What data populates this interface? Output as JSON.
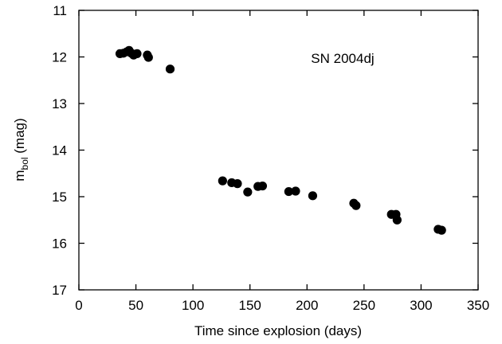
{
  "chart_data": {
    "type": "scatter",
    "title": "",
    "xlabel": "Time since explosion (days)",
    "ylabel_main": "m",
    "ylabel_sub": "bol",
    "ylabel_unit": " (mag)",
    "annotation": "SN 2004dj",
    "xlim": [
      0,
      350
    ],
    "ylim": [
      11,
      17
    ],
    "y_inverted": true,
    "x_ticks": [
      "0",
      "50",
      "100",
      "150",
      "200",
      "250",
      "300",
      "350"
    ],
    "y_ticks": [
      "11",
      "12",
      "13",
      "14",
      "15",
      "16",
      "17"
    ],
    "grid": false,
    "marker_color": "#000000",
    "points": [
      {
        "x": 36,
        "y": 11.93
      },
      {
        "x": 39,
        "y": 11.92
      },
      {
        "x": 42,
        "y": 11.89
      },
      {
        "x": 44,
        "y": 11.86
      },
      {
        "x": 46,
        "y": 11.92
      },
      {
        "x": 48,
        "y": 11.96
      },
      {
        "x": 51,
        "y": 11.93
      },
      {
        "x": 60,
        "y": 11.96
      },
      {
        "x": 61,
        "y": 12.01
      },
      {
        "x": 80,
        "y": 12.26
      },
      {
        "x": 126,
        "y": 14.66
      },
      {
        "x": 134,
        "y": 14.7
      },
      {
        "x": 139,
        "y": 14.72
      },
      {
        "x": 148,
        "y": 14.9
      },
      {
        "x": 157,
        "y": 14.78
      },
      {
        "x": 161,
        "y": 14.77
      },
      {
        "x": 184,
        "y": 14.89
      },
      {
        "x": 190,
        "y": 14.88
      },
      {
        "x": 205,
        "y": 14.98
      },
      {
        "x": 241,
        "y": 15.14
      },
      {
        "x": 243,
        "y": 15.19
      },
      {
        "x": 274,
        "y": 15.38
      },
      {
        "x": 278,
        "y": 15.38
      },
      {
        "x": 279,
        "y": 15.5
      },
      {
        "x": 315,
        "y": 15.7
      },
      {
        "x": 318,
        "y": 15.72
      }
    ]
  }
}
